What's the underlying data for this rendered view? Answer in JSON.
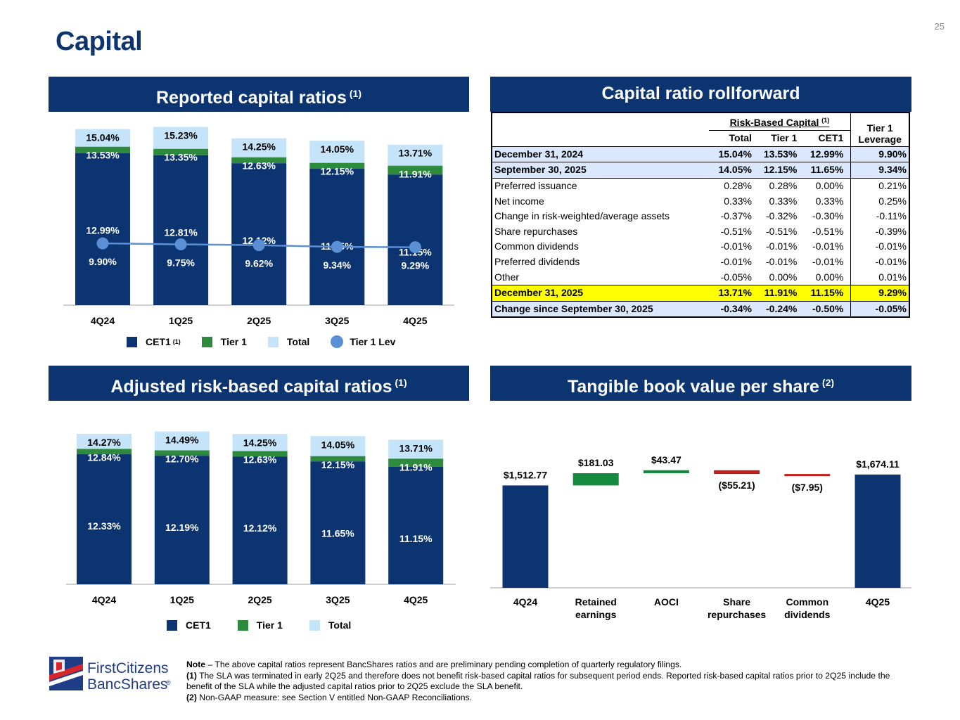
{
  "page": {
    "title": "Capital",
    "page_number": "25"
  },
  "colors": {
    "navy": "#0b3470",
    "tier1_green": "#2e8b3e",
    "total_light": "#c5e4fa",
    "lev_blue": "#5b8fd6",
    "wf_green": "#138a3e",
    "wf_red": "#c0201c",
    "highlight_yellow": "#ffff00",
    "row_blue": "#dbe7fc"
  },
  "panels": {
    "reported": {
      "title": "Reported capital ratios",
      "note_ref": "(1)"
    },
    "rollforward": {
      "title": "Capital ratio rollforward"
    },
    "adjusted": {
      "title": "Adjusted risk-based capital ratios",
      "note_ref": "(1)"
    },
    "tbv": {
      "title": "Tangible book value per share",
      "note_ref": "(2)"
    }
  },
  "legend_reported": {
    "cet1": "CET1",
    "cet1_ref": "(1)",
    "tier1": "Tier 1",
    "total": "Total",
    "lev": "Tier 1 Lev"
  },
  "legend_adjusted": {
    "cet1": "CET1",
    "tier1": "Tier 1",
    "total": "Total"
  },
  "chart_data": [
    {
      "type": "bar",
      "name": "reported",
      "categories": [
        "4Q24",
        "1Q25",
        "2Q25",
        "3Q25",
        "4Q25"
      ],
      "ylim": [
        0,
        16
      ],
      "series": [
        {
          "name": "CET1",
          "values": [
            12.99,
            12.81,
            12.12,
            11.65,
            11.15
          ],
          "labels": [
            "12.99%",
            "12.81%",
            "12.12%",
            "11.65%",
            "11.15%"
          ]
        },
        {
          "name": "Tier 1",
          "values": [
            13.53,
            13.35,
            12.63,
            12.15,
            11.91
          ],
          "labels": [
            "13.53%",
            "13.35%",
            "12.63%",
            "12.15%",
            "11.91%"
          ]
        },
        {
          "name": "Total",
          "values": [
            15.04,
            15.23,
            14.25,
            14.05,
            13.71
          ],
          "labels": [
            "15.04%",
            "15.23%",
            "14.25%",
            "14.05%",
            "13.71%"
          ]
        },
        {
          "name": "Tier 1 Lev",
          "type": "line",
          "values": [
            9.9,
            9.75,
            9.62,
            9.34,
            9.29
          ],
          "labels": [
            "9.90%",
            "9.75%",
            "9.62%",
            "9.34%",
            "9.29%"
          ]
        }
      ]
    },
    {
      "type": "bar",
      "name": "adjusted",
      "categories": [
        "4Q24",
        "1Q25",
        "2Q25",
        "3Q25",
        "4Q25"
      ],
      "ylim": [
        0,
        16
      ],
      "series": [
        {
          "name": "CET1",
          "values": [
            12.33,
            12.19,
            12.12,
            11.65,
            11.15
          ],
          "labels": [
            "12.33%",
            "12.19%",
            "12.12%",
            "11.65%",
            "11.15%"
          ]
        },
        {
          "name": "Tier 1",
          "values": [
            12.84,
            12.7,
            12.63,
            12.15,
            11.91
          ],
          "labels": [
            "12.84%",
            "12.70%",
            "12.63%",
            "12.15%",
            "11.91%"
          ]
        },
        {
          "name": "Total",
          "values": [
            14.27,
            14.49,
            14.25,
            14.05,
            13.71
          ],
          "labels": [
            "14.27%",
            "14.49%",
            "14.25%",
            "14.05%",
            "13.71%"
          ]
        }
      ]
    },
    {
      "type": "bar",
      "name": "tbv_waterfall",
      "categories": [
        "4Q24",
        "Retained earnings",
        "AOCI",
        "Share repurchases",
        "Common dividends",
        "4Q25"
      ],
      "category_lines": [
        [
          "4Q24"
        ],
        [
          "Retained",
          "earnings"
        ],
        [
          "AOCI"
        ],
        [
          "Share",
          "repurchases"
        ],
        [
          "Common",
          "dividends"
        ],
        [
          "4Q25"
        ]
      ],
      "values": [
        1512.77,
        181.03,
        43.47,
        -55.21,
        -7.95,
        1674.11
      ],
      "kinds": [
        "total",
        "increase",
        "increase",
        "decrease",
        "decrease",
        "total"
      ],
      "labels": [
        "$1,512.77",
        "$181.03",
        "$43.47",
        "($55.21)",
        "($7.95)",
        "$1,674.11"
      ]
    },
    {
      "type": "table",
      "name": "rollforward",
      "group_header": "Risk-Based Capital",
      "group_ref": "(1)",
      "columns": [
        "Total",
        "Tier 1",
        "CET1",
        "Tier 1 Leverage"
      ],
      "col_lev_lines": [
        "Tier 1",
        "Leverage"
      ],
      "rows": [
        {
          "label": "December 31, 2024",
          "style": "blue",
          "values": [
            "15.04%",
            "13.53%",
            "12.99%",
            "9.90%"
          ]
        },
        {
          "label": "September 30, 2025",
          "style": "blue",
          "values": [
            "14.05%",
            "12.15%",
            "11.65%",
            "9.34%"
          ]
        },
        {
          "label": "Preferred issuance",
          "style": "",
          "values": [
            "0.28%",
            "0.28%",
            "0.00%",
            "0.21%"
          ]
        },
        {
          "label": "Net income",
          "style": "",
          "values": [
            "0.33%",
            "0.33%",
            "0.33%",
            "0.25%"
          ]
        },
        {
          "label": "Change in risk-weighted/average assets",
          "style": "",
          "values": [
            "-0.37%",
            "-0.32%",
            "-0.30%",
            "-0.11%"
          ]
        },
        {
          "label": "Share repurchases",
          "style": "",
          "values": [
            "-0.51%",
            "-0.51%",
            "-0.51%",
            "-0.39%"
          ]
        },
        {
          "label": "Common dividends",
          "style": "",
          "values": [
            "-0.01%",
            "-0.01%",
            "-0.01%",
            "-0.01%"
          ]
        },
        {
          "label": "Preferred dividends",
          "style": "",
          "values": [
            "-0.01%",
            "-0.01%",
            "-0.01%",
            "-0.01%"
          ]
        },
        {
          "label": "Other",
          "style": "",
          "values": [
            "-0.05%",
            "0.00%",
            "0.00%",
            "0.01%"
          ]
        },
        {
          "label": "December 31, 2025",
          "style": "yellow",
          "values": [
            "13.71%",
            "11.91%",
            "11.15%",
            "9.29%"
          ]
        },
        {
          "label": "Change since September 30, 2025",
          "style": "blue",
          "values": [
            "-0.34%",
            "-0.24%",
            "-0.50%",
            "-0.05%"
          ]
        }
      ]
    }
  ],
  "notes": {
    "note_label": "Note",
    "note_text": " – The above capital ratios represent BancShares ratios and are preliminary pending completion of quarterly regulatory filings.",
    "n1_label": "(1)",
    "n1_text": "  The SLA was terminated in early 2Q25 and therefore does not benefit risk-based capital ratios for subsequent period ends. Reported risk-based capital ratios prior to 2Q25 include the benefit of the SLA while the adjusted capital ratios prior to 2Q25 exclude the SLA benefit.",
    "n2_label": "(2)",
    "n2_text": "  Non-GAAP measure: see Section V entitled Non-GAAP Reconciliations."
  },
  "logo": {
    "line1": "FirstCitizens",
    "line2": "BancShares",
    "mark": "®"
  }
}
